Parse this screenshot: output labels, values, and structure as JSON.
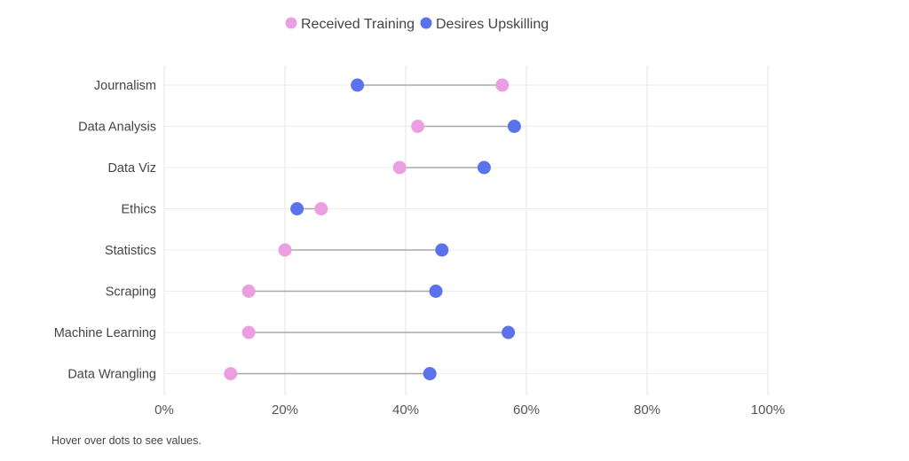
{
  "chart_data": {
    "type": "dumbbell",
    "title": "",
    "xlabel": "",
    "ylabel": "",
    "xlim": [
      0,
      100
    ],
    "x_ticks": [
      "0%",
      "20%",
      "40%",
      "60%",
      "80%",
      "100%"
    ],
    "grid": true,
    "legend_position": "top-center",
    "categories": [
      "Journalism",
      "Data Analysis",
      "Data Viz",
      "Ethics",
      "Statistics",
      "Scraping",
      "Machine Learning",
      "Data Wrangling"
    ],
    "series": [
      {
        "name": "Received Training",
        "color": "#ec9fe0",
        "values": [
          56,
          42,
          39,
          26,
          20,
          14,
          14,
          11
        ]
      },
      {
        "name": "Desires Upskilling",
        "color": "#5a72ec",
        "values": [
          32,
          58,
          53,
          22,
          46,
          45,
          57,
          44
        ]
      }
    ]
  },
  "footer": {
    "note": "Hover over dots to see values."
  }
}
